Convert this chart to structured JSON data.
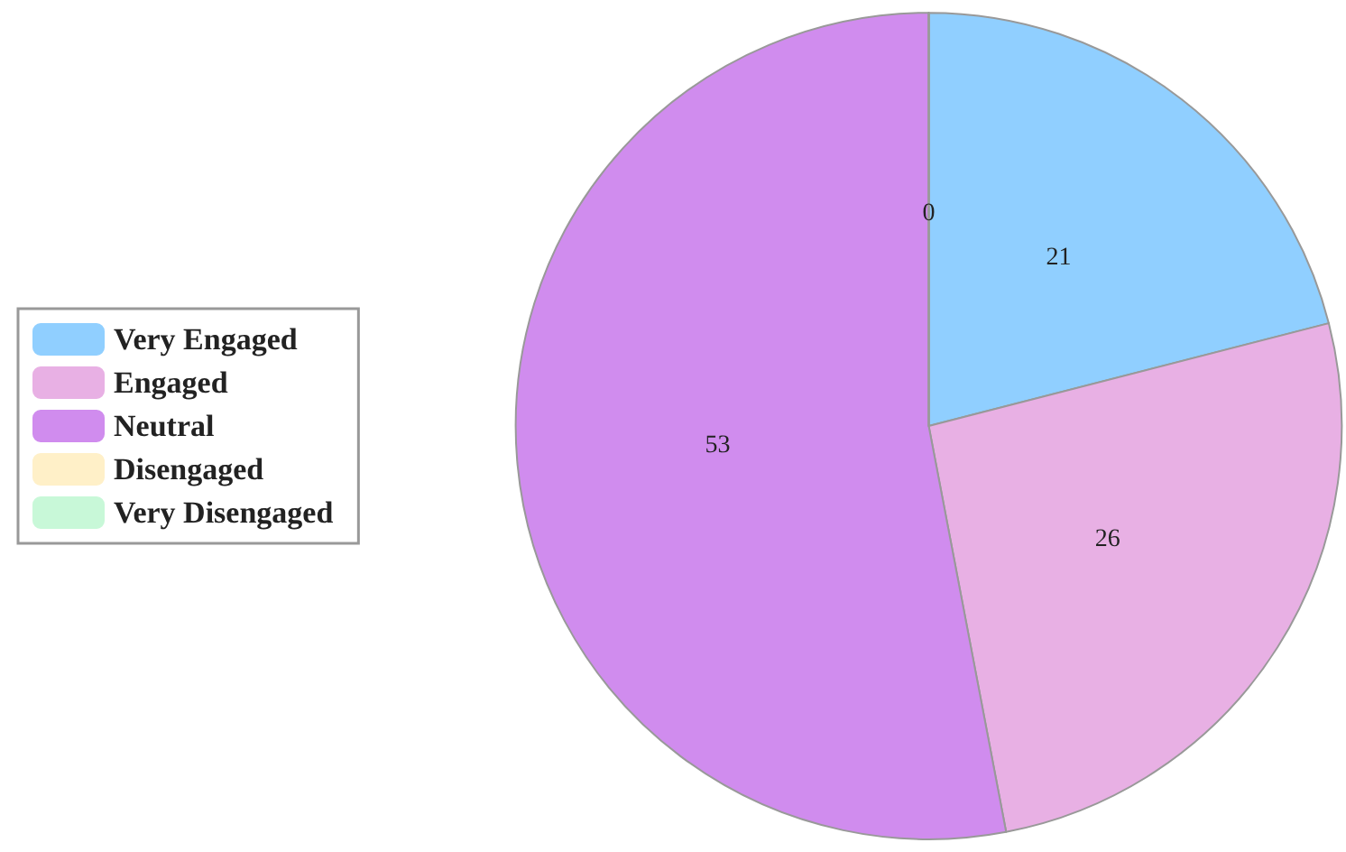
{
  "chart_data": {
    "type": "pie",
    "categories": [
      "Very Engaged",
      "Engaged",
      "Neutral",
      "Disengaged",
      "Very Disengaged"
    ],
    "values": [
      21,
      26,
      53,
      0,
      0
    ],
    "colors": [
      "#90cfff",
      "#e8b0e4",
      "#d08cee",
      "#fff0c8",
      "#c8f8d8"
    ],
    "value_labels": [
      "21",
      "26",
      "53",
      "0",
      null
    ],
    "legend": "left"
  }
}
